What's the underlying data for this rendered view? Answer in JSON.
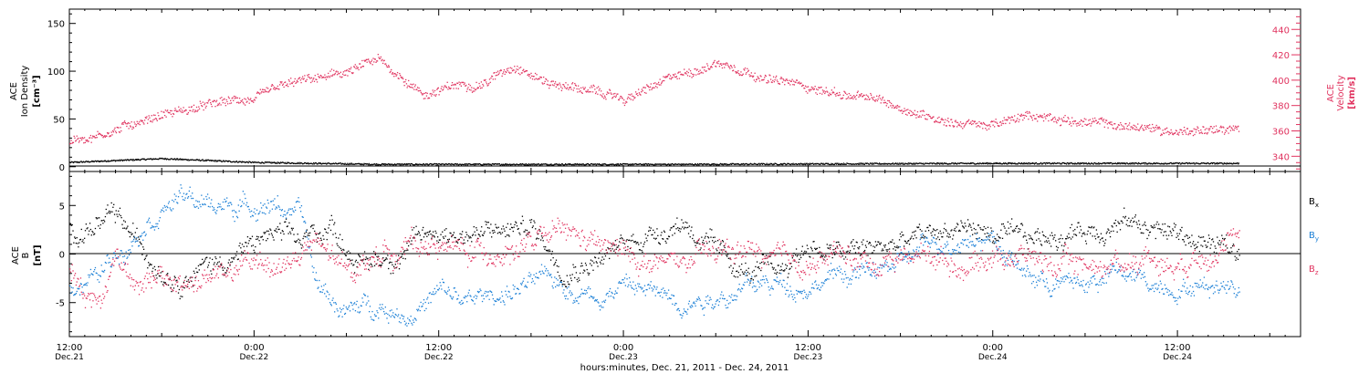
{
  "chart_data": [
    {
      "type": "scatter",
      "title": "",
      "xlabel": "hours:minutes, Dec. 21, 2011 - Dec. 24, 2011",
      "ylabel_left": [
        "ACE",
        "Ion Density",
        "[cm⁻³]"
      ],
      "ylabel_right": [
        "ACE",
        "Velocity",
        "[km/s]"
      ],
      "xlim_hours": [
        0,
        80
      ],
      "ylim_left": [
        -5,
        165
      ],
      "ylim_right": [
        328,
        456
      ],
      "yticks_left": [
        0,
        50,
        100,
        150
      ],
      "yticks_right": [
        340,
        360,
        380,
        400,
        420,
        440
      ],
      "reference_line_y": 0,
      "series": [
        {
          "name": "",
          "axis": "left",
          "color": "#000000",
          "keypoints": [
            [
              0,
              5
            ],
            [
              6,
              9
            ],
            [
              12,
              5
            ],
            [
              20,
              3
            ],
            [
              40,
              3
            ],
            [
              60,
              4
            ],
            [
              76,
              4
            ]
          ]
        },
        {
          "name": "",
          "axis": "right",
          "color": "#e0335f",
          "keypoints": [
            [
              0,
              352
            ],
            [
              3,
              362
            ],
            [
              6,
              375
            ],
            [
              9,
              380
            ],
            [
              12,
              385
            ],
            [
              15,
              397
            ],
            [
              18,
              405
            ],
            [
              20,
              415
            ],
            [
              23,
              390
            ],
            [
              27,
              400
            ],
            [
              29,
              414
            ],
            [
              31,
              400
            ],
            [
              33,
              395
            ],
            [
              36,
              385
            ],
            [
              40,
              405
            ],
            [
              42,
              415
            ],
            [
              44,
              410
            ],
            [
              46,
              400
            ],
            [
              48,
              395
            ],
            [
              50,
              390
            ],
            [
              52,
              385
            ],
            [
              54,
              378
            ],
            [
              56,
              372
            ],
            [
              58,
              368
            ],
            [
              60,
              365
            ],
            [
              62,
              370
            ],
            [
              64,
              372
            ],
            [
              66,
              368
            ],
            [
              68,
              364
            ],
            [
              70,
              362
            ],
            [
              72,
              360
            ],
            [
              74,
              363
            ],
            [
              76,
              360
            ]
          ]
        }
      ]
    },
    {
      "type": "scatter",
      "title": "",
      "xlabel": "hours:minutes, Dec. 21, 2011 - Dec. 24, 2011",
      "ylabel": [
        "ACE",
        "B",
        "[nT]"
      ],
      "xlim_hours": [
        0,
        80
      ],
      "ylim": [
        -8.5,
        8.5
      ],
      "yticks": [
        -5,
        0,
        5
      ],
      "reference_line_y": 0,
      "series": [
        {
          "name": "Bx",
          "color": "#000000",
          "keypoints": [
            [
              0,
              2.5
            ],
            [
              3,
              3.5
            ],
            [
              5,
              0
            ],
            [
              7,
              -2
            ],
            [
              9,
              -1
            ],
            [
              11,
              0
            ],
            [
              13,
              2
            ],
            [
              15,
              1
            ],
            [
              17,
              3
            ],
            [
              19,
              -1
            ],
            [
              21,
              0
            ],
            [
              24,
              2.5
            ],
            [
              27,
              2
            ],
            [
              30,
              3
            ],
            [
              32,
              -1
            ],
            [
              35,
              0
            ],
            [
              38,
              2.5
            ],
            [
              40,
              3.5
            ],
            [
              42,
              0
            ],
            [
              44,
              -2
            ],
            [
              46,
              -2
            ],
            [
              48,
              1
            ],
            [
              50,
              0
            ],
            [
              52,
              0.5
            ],
            [
              54,
              1
            ],
            [
              56,
              2
            ],
            [
              58,
              3
            ],
            [
              60,
              2
            ],
            [
              62,
              1
            ],
            [
              64,
              2
            ],
            [
              66,
              2.5
            ],
            [
              68,
              3.5
            ],
            [
              70,
              3
            ],
            [
              72,
              2
            ],
            [
              74,
              1
            ],
            [
              76,
              0
            ]
          ],
          "jitter": 2.2
        },
        {
          "name": "By",
          "color": "#1a7fd6",
          "keypoints": [
            [
              0,
              -3
            ],
            [
              2,
              -2
            ],
            [
              4,
              2
            ],
            [
              5,
              4
            ],
            [
              7,
              6
            ],
            [
              9,
              5
            ],
            [
              11,
              5
            ],
            [
              13,
              5.5
            ],
            [
              15,
              4
            ],
            [
              16,
              -3
            ],
            [
              18,
              -6
            ],
            [
              20,
              -5
            ],
            [
              22,
              -6
            ],
            [
              24,
              -4
            ],
            [
              26,
              -5
            ],
            [
              28,
              -4
            ],
            [
              30,
              -3
            ],
            [
              32,
              -3
            ],
            [
              34,
              -4
            ],
            [
              36,
              -3
            ],
            [
              38,
              -4
            ],
            [
              40,
              -4.5
            ],
            [
              42,
              -4
            ],
            [
              44,
              -3.5
            ],
            [
              46,
              -3
            ],
            [
              48,
              -3
            ],
            [
              50,
              -2
            ],
            [
              52,
              -2
            ],
            [
              54,
              -1
            ],
            [
              56,
              1
            ],
            [
              58,
              2
            ],
            [
              60,
              2
            ],
            [
              62,
              -2
            ],
            [
              64,
              -3
            ],
            [
              66,
              -3
            ],
            [
              68,
              -2
            ],
            [
              70,
              -3
            ],
            [
              72,
              -3
            ],
            [
              74,
              -3
            ],
            [
              76,
              -3
            ]
          ],
          "jitter": 1.8
        },
        {
          "name": "Bz",
          "color": "#e0335f",
          "keypoints": [
            [
              0,
              -1
            ],
            [
              1,
              -4
            ],
            [
              2,
              -5
            ],
            [
              3,
              0
            ],
            [
              4,
              -2
            ],
            [
              6,
              -3
            ],
            [
              8,
              -3
            ],
            [
              10,
              -2
            ],
            [
              12,
              -1
            ],
            [
              14,
              -1
            ],
            [
              16,
              1
            ],
            [
              18,
              -2
            ],
            [
              20,
              0
            ],
            [
              22,
              1
            ],
            [
              24,
              1
            ],
            [
              26,
              0
            ],
            [
              28,
              0.5
            ],
            [
              30,
              1
            ],
            [
              32,
              2
            ],
            [
              34,
              1
            ],
            [
              36,
              0
            ],
            [
              38,
              -1
            ],
            [
              40,
              -1
            ],
            [
              42,
              0
            ],
            [
              44,
              0.5
            ],
            [
              46,
              -1
            ],
            [
              48,
              -1
            ],
            [
              50,
              0
            ],
            [
              52,
              -1
            ],
            [
              54,
              0
            ],
            [
              56,
              0
            ],
            [
              58,
              -1
            ],
            [
              60,
              0
            ],
            [
              62,
              0
            ],
            [
              64,
              -1
            ],
            [
              66,
              -1
            ],
            [
              68,
              -1
            ],
            [
              70,
              0
            ],
            [
              72,
              -1
            ],
            [
              74,
              1
            ],
            [
              76,
              1
            ]
          ],
          "jitter": 2.5
        }
      ],
      "legend": [
        "Bx",
        "By",
        "Bz"
      ],
      "legend_placement": "right"
    }
  ],
  "xticks": [
    {
      "h": 0,
      "time": "12:00",
      "date": "Dec.21"
    },
    {
      "h": 6,
      "time": "",
      "date": ""
    },
    {
      "h": 12,
      "time": "0:00",
      "date": "Dec.22"
    },
    {
      "h": 18,
      "time": "",
      "date": ""
    },
    {
      "h": 24,
      "time": "12:00",
      "date": "Dec.22"
    },
    {
      "h": 30,
      "time": "",
      "date": ""
    },
    {
      "h": 36,
      "time": "0:00",
      "date": "Dec.23"
    },
    {
      "h": 42,
      "time": "",
      "date": ""
    },
    {
      "h": 48,
      "time": "12:00",
      "date": "Dec.23"
    },
    {
      "h": 54,
      "time": "",
      "date": ""
    },
    {
      "h": 60,
      "time": "0:00",
      "date": "Dec.24"
    },
    {
      "h": 66,
      "time": "",
      "date": ""
    },
    {
      "h": 72,
      "time": "12:00",
      "date": "Dec.24"
    },
    {
      "h": 78,
      "time": "",
      "date": ""
    }
  ]
}
